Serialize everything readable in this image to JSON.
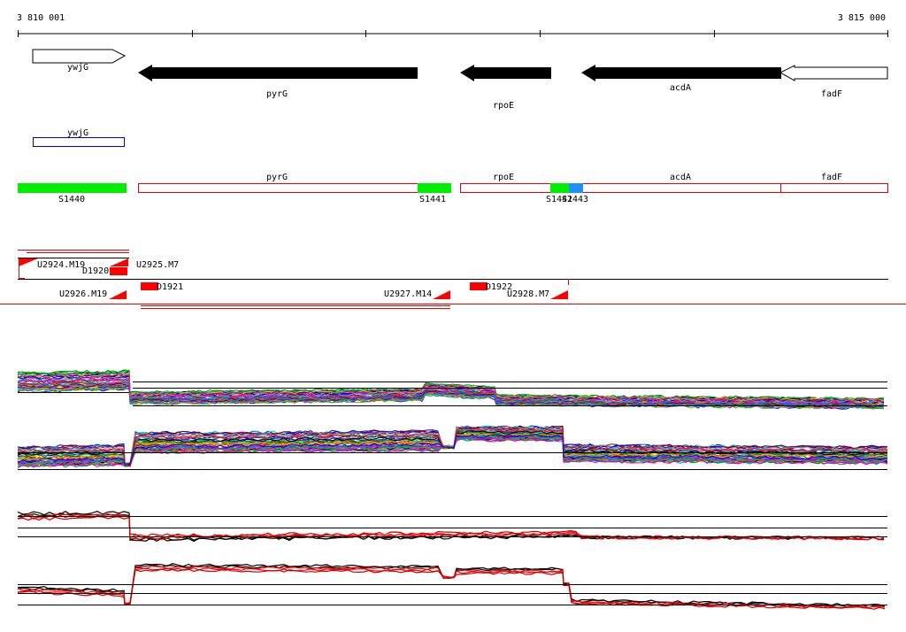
{
  "ruler": {
    "start_label": "3 810 001",
    "end_label": "3 815 000"
  },
  "genes": [
    {
      "name": "ywjG",
      "label": "ywjG",
      "strand": "+",
      "style": "outline"
    },
    {
      "name": "pyrG",
      "label": "pyrG",
      "strand": "-",
      "style": "filled"
    },
    {
      "name": "rpoE",
      "label": "rpoE",
      "strand": "-",
      "style": "filled"
    },
    {
      "name": "acdA",
      "label": "acdA",
      "strand": "-",
      "style": "filled"
    },
    {
      "name": "fadF",
      "label": "fadF",
      "strand": "-",
      "style": "outline"
    }
  ],
  "annotation_box": {
    "label": "ywjG"
  },
  "transcripts": [
    {
      "label": "pyrG"
    },
    {
      "label": "rpoE"
    },
    {
      "label": "acdA"
    },
    {
      "label": "fadF"
    }
  ],
  "segments": [
    {
      "label": "S1440",
      "color": "#00ee00"
    },
    {
      "label": "S1441",
      "color": "#00ee00"
    },
    {
      "label": "S1442",
      "color": "#00ee00"
    },
    {
      "label": "S1443",
      "color": "#1e90ff"
    }
  ],
  "upstream_features": [
    {
      "label": "U2924.M19"
    },
    {
      "label": "U2925.M7"
    },
    {
      "label": "U2926.M19"
    },
    {
      "label": "U2927.M14"
    },
    {
      "label": "U2928.M7"
    }
  ],
  "downstream_features": [
    {
      "label": "D1920"
    },
    {
      "label": "D1921"
    },
    {
      "label": "D1922"
    }
  ],
  "colors": {
    "gene_fill": "#000000",
    "feature_red": "#ff0000",
    "annotation_blue": "#0000cc",
    "separator": "#ee0000"
  }
}
